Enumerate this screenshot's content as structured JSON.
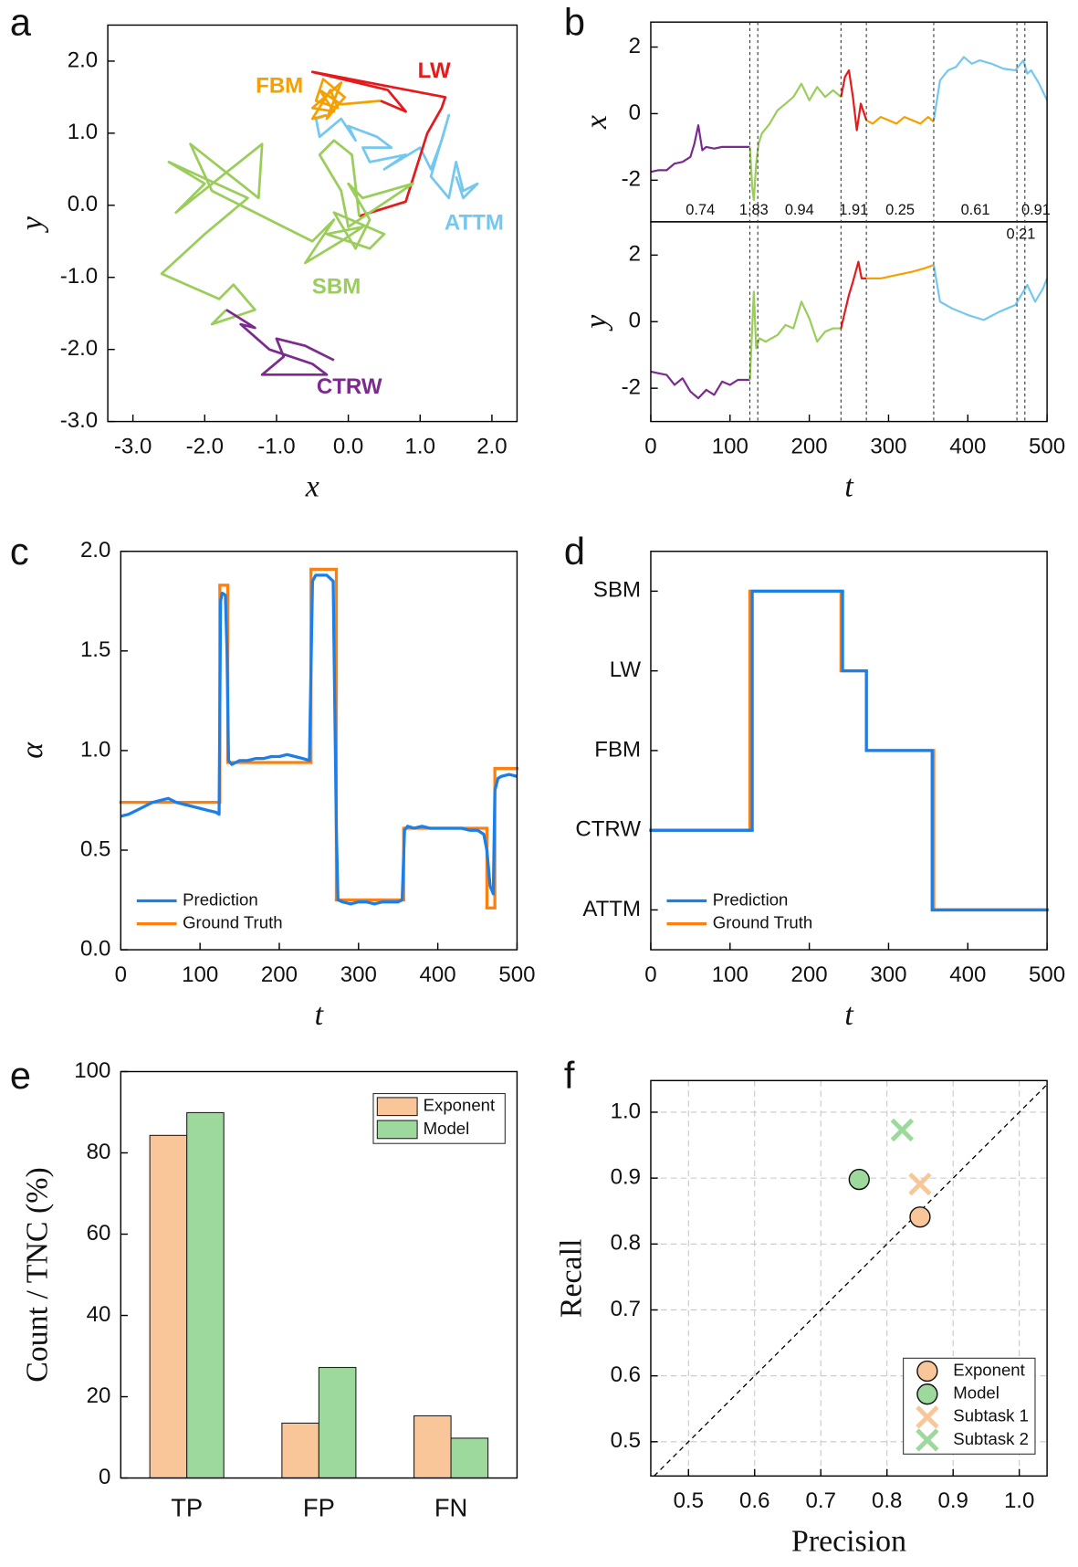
{
  "chart_data": [
    {
      "panel": "a",
      "type": "line",
      "xlabel": "x",
      "ylabel": "y",
      "xlim": [
        -3.35,
        2.35
      ],
      "ylim": [
        -3,
        2.5
      ],
      "xticks": [
        {
          "value": -3,
          "label": "-3.0"
        },
        {
          "value": -2,
          "label": "-2.0"
        },
        {
          "value": -1,
          "label": "-1.0"
        },
        {
          "value": 0,
          "label": "0.0"
        },
        {
          "value": 1,
          "label": "1.0"
        },
        {
          "value": 2,
          "label": "2.0"
        }
      ],
      "yticks": [
        {
          "value": -3,
          "label": "-3.0"
        },
        {
          "value": -2,
          "label": "-2.0"
        },
        {
          "value": -1,
          "label": "-1.0"
        },
        {
          "value": 0,
          "label": "0.0"
        },
        {
          "value": 1,
          "label": "1.0"
        },
        {
          "value": 2,
          "label": "2.0"
        }
      ],
      "series": [
        {
          "name": "CTRW",
          "color": "#7b2a8e",
          "x": [
            -0.2,
            -0.6,
            -1.0,
            -0.9,
            -1.2,
            -0.3,
            -0.5,
            -1.1,
            -1.5,
            -1.3,
            -1.7
          ],
          "values": [
            -2.15,
            -1.95,
            -1.85,
            -2.1,
            -2.35,
            -2.35,
            -2.2,
            -2.0,
            -1.65,
            -1.7,
            -1.45
          ]
        },
        {
          "name": "SBM",
          "color": "#9acd5a",
          "x": [
            -1.7,
            -1.9,
            -1.3,
            -1.6,
            -1.8,
            -2.6,
            -2.0,
            -1.4,
            -2.5,
            -2.0,
            -2.4,
            -1.2,
            -1.25,
            -2.2,
            -1.9,
            -0.9,
            -0.5,
            -0.2,
            -0.6,
            -0.1,
            0.2,
            -0.3,
            0.3,
            0.5,
            -0.2,
            0.1,
            0.3,
            0.0,
            0.2,
            0.9,
            0.0,
            -0.1,
            -0.4,
            -0.2,
            0.05,
            0.15
          ],
          "values": [
            -1.45,
            -1.65,
            -1.45,
            -1.1,
            -1.3,
            -0.95,
            -0.4,
            0.1,
            0.6,
            0.3,
            -0.1,
            0.85,
            0.1,
            0.85,
            0.2,
            -0.3,
            -0.5,
            -0.2,
            -0.8,
            -0.5,
            -0.3,
            -0.4,
            -0.6,
            -0.4,
            -0.1,
            -0.6,
            -0.2,
            0.3,
            0.1,
            0.3,
            -0.3,
            0.2,
            0.7,
            0.9,
            0.7,
            -0.15
          ]
        },
        {
          "name": "LW",
          "color": "#e41a1c",
          "x": [
            0.15,
            0.8,
            1.1,
            1.3,
            1.35,
            -0.5,
            0.55,
            0.8,
            0.45
          ],
          "values": [
            -0.15,
            0.05,
            1.0,
            1.35,
            1.5,
            1.85,
            1.6,
            1.3,
            1.45
          ]
        },
        {
          "name": "FBM",
          "color": "#f5a000",
          "x": [
            0.45,
            -0.1,
            -0.4,
            -0.2,
            -0.5,
            -0.1,
            -0.3,
            -0.05,
            -0.35,
            -0.45,
            -0.15,
            -0.25,
            -0.5,
            -0.3
          ],
          "values": [
            1.45,
            1.4,
            1.6,
            1.3,
            1.35,
            1.7,
            1.2,
            1.5,
            1.75,
            1.45,
            1.35,
            1.6,
            1.2,
            1.25
          ]
        },
        {
          "name": "ATTM",
          "color": "#74c8ef",
          "x": [
            -0.3,
            -0.45,
            -0.4,
            -0.1,
            0.1,
            0.0,
            0.4,
            0.6,
            0.2,
            0.3,
            0.8,
            0.5,
            1.0,
            1.15,
            1.3,
            1.4,
            1.15,
            1.4,
            1.5,
            1.6,
            1.8,
            1.6,
            1.5
          ],
          "values": [
            1.25,
            1.2,
            0.95,
            1.2,
            0.9,
            1.1,
            0.95,
            0.8,
            0.8,
            0.6,
            0.7,
            0.5,
            0.8,
            0.5,
            0.9,
            1.25,
            0.4,
            0.1,
            0.6,
            0.2,
            0.3,
            0.1,
            0.4
          ]
        }
      ]
    },
    {
      "panel": "b",
      "type": "line",
      "xlabel": "t",
      "xlim": [
        0,
        500
      ],
      "xticks": [
        0,
        100,
        200,
        300,
        400,
        500
      ],
      "subplots": [
        {
          "ylabel": "x",
          "ylim": [
            -3.25,
            2.75
          ],
          "yticks": [
            -2,
            0,
            2
          ],
          "series": [
            {
              "color": "#7b2a8e",
              "x": [
                0,
                10,
                20,
                30,
                40,
                50,
                55,
                60,
                65,
                70,
                80,
                90,
                100,
                110,
                125
              ],
              "values": [
                -1.75,
                -1.7,
                -1.7,
                -1.5,
                -1.45,
                -1.3,
                -0.9,
                -0.35,
                -1.1,
                -1.0,
                -1.05,
                -1.0,
                -1.0,
                -1.0,
                -1.0
              ]
            },
            {
              "color": "#9acd5a",
              "x": [
                125,
                128,
                130,
                133,
                136,
                140,
                150,
                160,
                170,
                180,
                190,
                200,
                210,
                220,
                230,
                240
              ],
              "values": [
                -1.0,
                -2.2,
                -2.6,
                -1.5,
                -0.9,
                -0.6,
                -0.3,
                0.1,
                0.3,
                0.5,
                0.9,
                0.4,
                0.8,
                0.5,
                0.7,
                0.5
              ]
            },
            {
              "color": "#e41a1c",
              "x": [
                240,
                245,
                250,
                255,
                260,
                265,
                272
              ],
              "values": [
                0.5,
                1.1,
                1.3,
                0.5,
                -0.5,
                0.3,
                -0.2
              ]
            },
            {
              "color": "#f5a000",
              "x": [
                272,
                280,
                290,
                300,
                310,
                320,
                330,
                340,
                350,
                357
              ],
              "values": [
                -0.2,
                -0.3,
                -0.1,
                -0.2,
                -0.3,
                -0.1,
                -0.2,
                -0.3,
                -0.1,
                -0.25
              ]
            },
            {
              "color": "#74c8ef",
              "x": [
                357,
                365,
                375,
                385,
                395,
                405,
                415,
                430,
                445,
                460,
                470,
                475,
                480,
                490,
                500
              ],
              "values": [
                -0.2,
                1.0,
                1.3,
                1.4,
                1.7,
                1.5,
                1.6,
                1.5,
                1.35,
                1.3,
                1.6,
                1.2,
                1.3,
                0.9,
                0.4
              ]
            }
          ]
        },
        {
          "ylabel": "y",
          "ylim": [
            -3,
            3
          ],
          "yticks": [
            -2,
            0,
            2
          ],
          "series": [
            {
              "color": "#7b2a8e",
              "x": [
                0,
                10,
                20,
                30,
                40,
                50,
                60,
                70,
                80,
                90,
                100,
                110,
                125
              ],
              "values": [
                -1.5,
                -1.55,
                -1.6,
                -1.9,
                -1.7,
                -2.1,
                -2.3,
                -2.05,
                -2.2,
                -1.8,
                -1.9,
                -1.75,
                -1.75
              ]
            },
            {
              "color": "#9acd5a",
              "x": [
                125,
                130,
                133,
                137,
                145,
                160,
                170,
                180,
                190,
                200,
                210,
                220,
                230,
                240
              ],
              "values": [
                -1.75,
                0.9,
                -0.8,
                -0.5,
                -0.6,
                -0.4,
                -0.1,
                -0.2,
                0.6,
                0.1,
                -0.6,
                -0.3,
                -0.2,
                -0.2
              ]
            },
            {
              "color": "#e41a1c",
              "x": [
                240,
                245,
                250,
                255,
                262,
                266,
                272
              ],
              "values": [
                -0.2,
                0.3,
                0.8,
                1.2,
                1.8,
                1.3,
                1.3
              ]
            },
            {
              "color": "#f5a000",
              "x": [
                272,
                290,
                310,
                330,
                345,
                357
              ],
              "values": [
                1.3,
                1.3,
                1.4,
                1.5,
                1.6,
                1.7
              ]
            },
            {
              "color": "#74c8ef",
              "x": [
                357,
                365,
                380,
                400,
                420,
                440,
                460,
                475,
                485,
                495,
                500
              ],
              "values": [
                1.7,
                0.6,
                0.4,
                0.2,
                0.05,
                0.3,
                0.5,
                1.1,
                0.6,
                1.0,
                1.3
              ]
            }
          ]
        }
      ],
      "changepoints": [
        125,
        135,
        240,
        272,
        357,
        462,
        472
      ],
      "segment_alpha": [
        0.74,
        1.83,
        0.94,
        1.91,
        0.25,
        0.61,
        0.21,
        0.91
      ]
    },
    {
      "panel": "c",
      "type": "line",
      "xlabel": "t",
      "ylabel": "α",
      "xlim": [
        0,
        500
      ],
      "ylim": [
        0,
        2
      ],
      "xticks": [
        0,
        100,
        200,
        300,
        400,
        500
      ],
      "yticks": [
        {
          "value": 0,
          "label": "0.0"
        },
        0.5,
        {
          "value": 1,
          "label": "1.0"
        },
        1.5,
        {
          "value": 2,
          "label": "2.0"
        }
      ],
      "legend": "lower left",
      "series": [
        {
          "name": "Prediction",
          "color": "#1a7fe8",
          "x": [
            0,
            10,
            20,
            30,
            40,
            50,
            60,
            70,
            80,
            90,
            100,
            110,
            120,
            124,
            126,
            128,
            132,
            134,
            136,
            140,
            150,
            160,
            170,
            180,
            190,
            200,
            210,
            220,
            230,
            238,
            242,
            246,
            250,
            260,
            268,
            272,
            274,
            280,
            290,
            300,
            310,
            320,
            330,
            340,
            350,
            355,
            358,
            362,
            370,
            380,
            390,
            400,
            410,
            420,
            430,
            440,
            450,
            458,
            462,
            466,
            470,
            472,
            476,
            480,
            490,
            500
          ],
          "values": [
            0.67,
            0.68,
            0.7,
            0.72,
            0.74,
            0.75,
            0.76,
            0.74,
            0.73,
            0.72,
            0.71,
            0.7,
            0.69,
            0.68,
            1.75,
            1.79,
            1.78,
            1.5,
            0.95,
            0.93,
            0.95,
            0.95,
            0.96,
            0.96,
            0.97,
            0.97,
            0.98,
            0.97,
            0.96,
            0.95,
            1.85,
            1.88,
            1.88,
            1.88,
            1.85,
            0.6,
            0.25,
            0.24,
            0.23,
            0.24,
            0.24,
            0.23,
            0.24,
            0.24,
            0.24,
            0.25,
            0.6,
            0.62,
            0.61,
            0.62,
            0.61,
            0.61,
            0.61,
            0.61,
            0.61,
            0.6,
            0.6,
            0.58,
            0.5,
            0.32,
            0.28,
            0.8,
            0.86,
            0.87,
            0.88,
            0.87
          ]
        },
        {
          "name": "Ground Truth",
          "color": "#ff7f0e",
          "edges": [
            0,
            125,
            135,
            240,
            272,
            357,
            462,
            472,
            500
          ],
          "values": [
            0.74,
            1.83,
            0.94,
            1.91,
            0.25,
            0.61,
            0.21,
            0.91
          ]
        }
      ]
    },
    {
      "panel": "d",
      "type": "line",
      "xlabel": "t",
      "xlim": [
        0,
        500
      ],
      "ylim": [
        -0.5,
        4.5
      ],
      "xticks": [
        0,
        100,
        200,
        300,
        400,
        500
      ],
      "yticks": [
        {
          "value": 0,
          "label": "ATTM"
        },
        {
          "value": 1,
          "label": "CTRW"
        },
        {
          "value": 2,
          "label": "FBM"
        },
        {
          "value": 3,
          "label": "LW"
        },
        {
          "value": 4,
          "label": "SBM"
        }
      ],
      "legend": "lower left",
      "series": [
        {
          "name": "Prediction",
          "color": "#1a7fe8",
          "edges": [
            0,
            128,
            242,
            272,
            355,
            500
          ],
          "values": [
            1,
            4,
            3,
            2,
            0
          ]
        },
        {
          "name": "Ground Truth",
          "color": "#ff7f0e",
          "edges": [
            0,
            125,
            240,
            272,
            357,
            500
          ],
          "values": [
            1,
            4,
            3,
            2,
            0
          ]
        }
      ]
    },
    {
      "panel": "e",
      "type": "bar",
      "ylabel": "Count / TNC (%)",
      "categories": [
        "TP",
        "FP",
        "FN"
      ],
      "ylim": [
        0,
        100
      ],
      "yticks": [
        0,
        20,
        40,
        60,
        80,
        100
      ],
      "legend": "upper right",
      "series": [
        {
          "name": "Exponent",
          "color": "#f9c69a",
          "values": [
            84.3,
            13.5,
            15.3
          ]
        },
        {
          "name": "Model",
          "color": "#9dd89d",
          "values": [
            89.9,
            27.2,
            9.8
          ]
        }
      ]
    },
    {
      "panel": "f",
      "type": "scatter",
      "xlabel": "Precision",
      "ylabel": "Recall",
      "xlim": [
        0.443,
        1.042
      ],
      "ylim": [
        0.448,
        1.048
      ],
      "xticks": [
        0.5,
        0.6,
        0.7,
        0.8,
        0.9,
        {
          "value": 1,
          "label": "1.0"
        }
      ],
      "yticks": [
        0.5,
        0.6,
        0.7,
        0.8,
        0.9,
        {
          "value": 1,
          "label": "1.0"
        }
      ],
      "grid": true,
      "diagonal": true,
      "legend": "lower right",
      "series": [
        {
          "name": "Exponent",
          "color": "#f9c69a",
          "marker": "o",
          "x": [
            0.85
          ],
          "values": [
            0.841
          ]
        },
        {
          "name": "Model",
          "color": "#9dd89d",
          "marker": "o",
          "x": [
            0.758
          ],
          "values": [
            0.898
          ]
        },
        {
          "name": "Subtask 1",
          "color": "#f9c69a",
          "marker": "x",
          "x": [
            0.85
          ],
          "values": [
            0.891
          ]
        },
        {
          "name": "Subtask 2",
          "color": "#9dd89d",
          "marker": "x",
          "x": [
            0.823
          ],
          "values": [
            0.973
          ]
        }
      ]
    }
  ]
}
